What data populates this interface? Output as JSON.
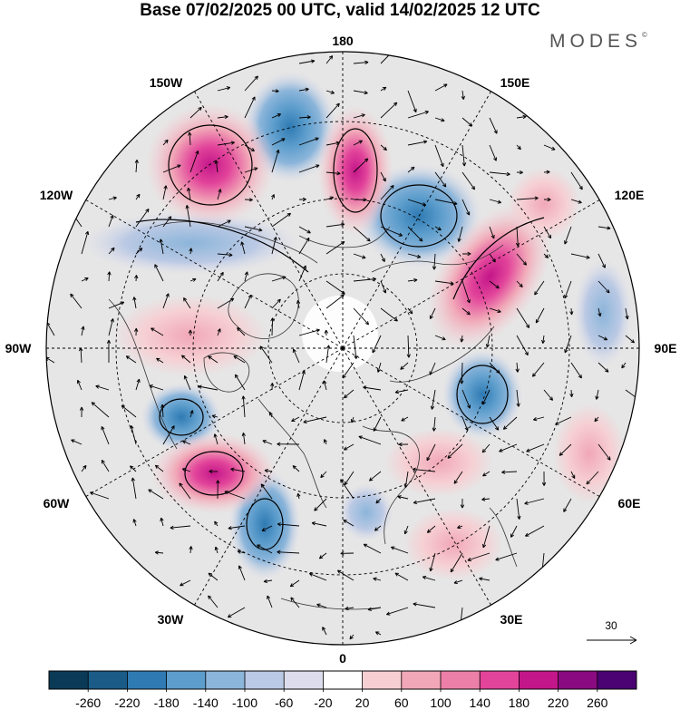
{
  "title": "Base 07/02/2025 00 UTC, valid 14/02/2025 12 UTC",
  "brand": {
    "name": "MODES",
    "mark": "©"
  },
  "map": {
    "projection": "north polar stereographic",
    "longitude_labels": [
      "180",
      "150E",
      "120E",
      "90E",
      "60E",
      "30E",
      "0",
      "30W",
      "60W",
      "90W",
      "120W",
      "150W"
    ],
    "graticule": "dashed",
    "features": [
      "coastlines",
      "wind-vectors",
      "shaded-anomaly",
      "contours"
    ],
    "anomalies": [
      {
        "name": "low",
        "sign": -1,
        "strength": 0.75
      },
      {
        "name": "low",
        "sign": -1,
        "strength": 0.8
      },
      {
        "name": "low",
        "sign": -1,
        "strength": 0.85
      },
      {
        "name": "low",
        "sign": -1,
        "strength": 0.65
      },
      {
        "name": "low",
        "sign": -1,
        "strength": 0.5
      },
      {
        "name": "low",
        "sign": -1,
        "strength": 0.8
      },
      {
        "name": "low",
        "sign": -1,
        "strength": 0.45
      },
      {
        "name": "low",
        "sign": -1,
        "strength": 0.4
      },
      {
        "name": "high",
        "sign": 1,
        "strength": 0.85
      },
      {
        "name": "high",
        "sign": 1,
        "strength": 0.85
      },
      {
        "name": "high",
        "sign": 1,
        "strength": 0.75
      },
      {
        "name": "high",
        "sign": 1,
        "strength": 0.6
      },
      {
        "name": "high",
        "sign": 1,
        "strength": 0.5
      },
      {
        "name": "high",
        "sign": 1,
        "strength": 0.4
      },
      {
        "name": "high",
        "sign": 1,
        "strength": 0.35
      }
    ]
  },
  "reference_vector": {
    "value": "30"
  },
  "colorbar": {
    "ticks": [
      "-260",
      "-220",
      "-180",
      "-140",
      "-100",
      "-60",
      "-20",
      "20",
      "60",
      "100",
      "140",
      "180",
      "220",
      "260"
    ],
    "colors": [
      "#0b3a57",
      "#1a5b87",
      "#2f7ab3",
      "#5c9dcc",
      "#8cb5da",
      "#bac9e4",
      "#dcdcec",
      "#ffffff",
      "#f6cfd3",
      "#f1a7b7",
      "#ec7fa8",
      "#e2449a",
      "#c3168a",
      "#8a0a80",
      "#4b0272"
    ]
  }
}
